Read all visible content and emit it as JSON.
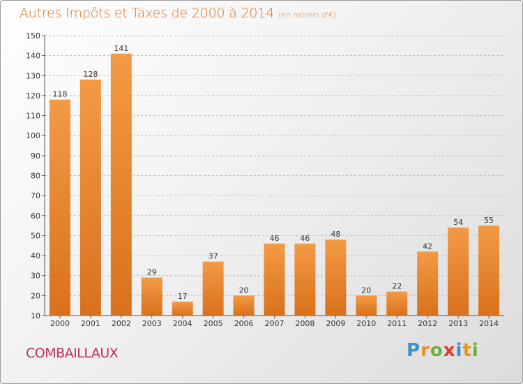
{
  "title": "Autres Impôts et Taxes de 2000 à 2014",
  "unit": "(en milliers d'€)",
  "commune": "COMBAILLAUX",
  "logo": {
    "letters": [
      "P",
      "r",
      "o",
      "x",
      "i",
      "t",
      "i"
    ],
    "colors": [
      "#3a8fd0",
      "#e8941a",
      "#6ab13d",
      "#e03a2f",
      "#3a8fd0",
      "#e8941a",
      "#6ab13d"
    ]
  },
  "colors": {
    "bar": "#f39a45",
    "bar_dark": "#d9711c",
    "title": "#d8712a",
    "commune": "#c0305a"
  },
  "chart_data": {
    "type": "bar",
    "title": "Autres Impôts et Taxes de 2000 à 2014",
    "xlabel": "",
    "ylabel": "",
    "ylim": [
      10,
      150
    ],
    "yticks": [
      10,
      20,
      30,
      40,
      50,
      60,
      70,
      80,
      90,
      100,
      110,
      120,
      130,
      140,
      150
    ],
    "grid": true,
    "categories": [
      "2000",
      "2001",
      "2002",
      "2003",
      "2004",
      "2005",
      "2006",
      "2007",
      "2008",
      "2009",
      "2010",
      "2011",
      "2012",
      "2013",
      "2014"
    ],
    "values": [
      118,
      128,
      141,
      29,
      17,
      37,
      20,
      46,
      46,
      48,
      20,
      22,
      42,
      54,
      55
    ]
  }
}
